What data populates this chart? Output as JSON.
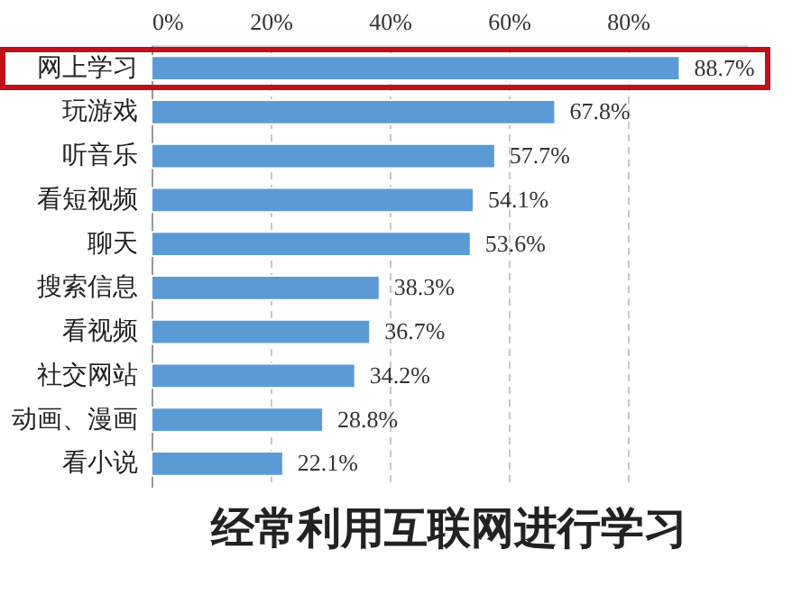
{
  "chart_data": {
    "type": "bar",
    "orientation": "horizontal",
    "categories": [
      "网上学习",
      "玩游戏",
      "听音乐",
      "看短视频",
      "聊天",
      "搜索信息",
      "看视频",
      "社交网站",
      "动画、漫画",
      "看小说"
    ],
    "values": [
      88.7,
      67.8,
      57.7,
      54.1,
      53.6,
      38.3,
      36.7,
      34.2,
      28.8,
      22.1
    ],
    "color": "#5b9bd5",
    "xlim": [
      0,
      100
    ],
    "xticks": [
      {
        "value": 0,
        "label": "0%"
      },
      {
        "value": 20,
        "label": "20%"
      },
      {
        "value": 40,
        "label": "40%"
      },
      {
        "value": 60,
        "label": "60%"
      },
      {
        "value": 80,
        "label": "80%"
      }
    ],
    "grid": "x",
    "value_labels": [
      "88.7%",
      "67.8%",
      "57.7%",
      "54.1%",
      "53.6%",
      "38.3%",
      "36.7%",
      "34.2%",
      "28.8%",
      "22.1%"
    ],
    "annotations": [
      "经常利用互联网进行学习"
    ]
  }
}
